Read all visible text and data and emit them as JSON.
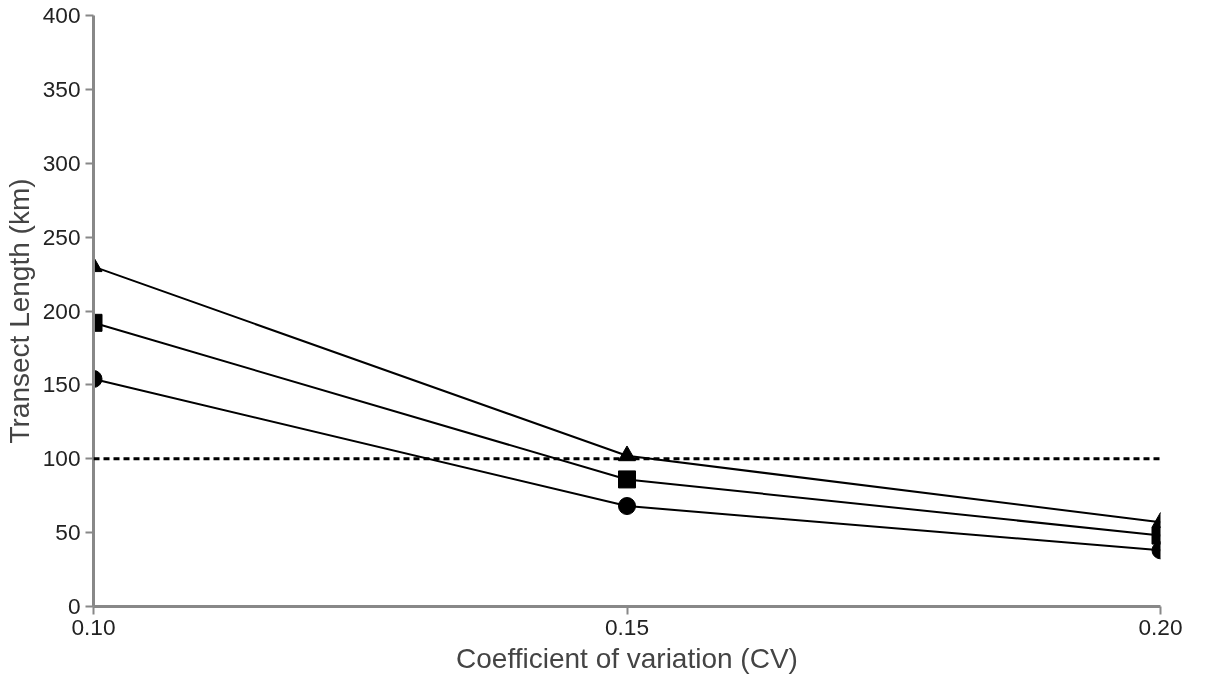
{
  "chart_data": {
    "type": "line",
    "xlabel": "Coefficient of variation (CV)",
    "ylabel": "Transect Length (km)",
    "x": [
      0.1,
      0.15,
      0.2
    ],
    "series": [
      {
        "color": "#000000",
        "marker": "triangle",
        "values": [
          230,
          102,
          57
        ]
      },
      {
        "color": "#000000",
        "marker": "square",
        "values": [
          192,
          86,
          48
        ]
      },
      {
        "color": "#000000",
        "marker": "circle",
        "values": [
          154,
          68,
          38
        ]
      }
    ],
    "xlim": [
      0.1,
      0.2
    ],
    "xticks": [
      {
        "value": 0.1,
        "label": "0.10"
      },
      {
        "value": 0.15,
        "label": "0.15"
      },
      {
        "value": 0.2,
        "label": "0.20"
      }
    ],
    "ylim": [
      0,
      400
    ],
    "yticks": [
      0,
      50,
      100,
      150,
      200,
      250,
      300,
      350,
      400
    ],
    "ref_lines": [
      {
        "axis": "y",
        "value": 100,
        "label": null,
        "color": "#000000",
        "line_style": "dashed"
      }
    ],
    "grid": false,
    "line_style": "solid"
  }
}
